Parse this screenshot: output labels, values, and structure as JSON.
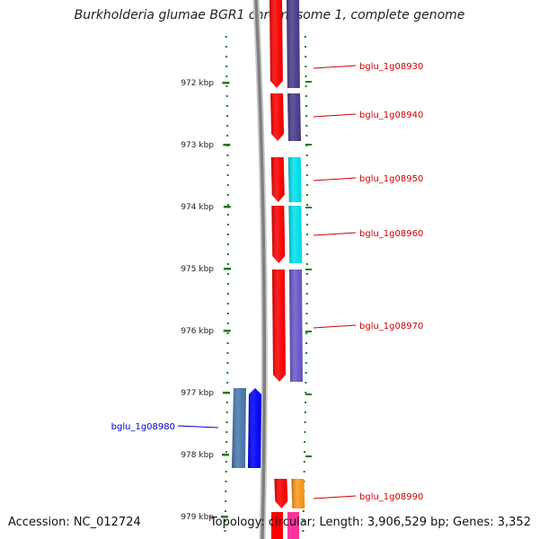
{
  "title": "Burkholderia glumae BGR1 chromosome 1, complete genome",
  "accession": "Accession: NC_012724",
  "stats": "Topology: circular; Length: 3,906,529 bp; Genes: 3,352",
  "scale_marks": [
    {
      "label": "972 kbp"
    },
    {
      "label": "973 kbp"
    },
    {
      "label": "974 kbp"
    },
    {
      "label": "975 kbp"
    },
    {
      "label": "976 kbp"
    },
    {
      "label": "977 kbp"
    },
    {
      "label": "978 kbp"
    },
    {
      "label": "979 kbp"
    }
  ],
  "genes": [
    {
      "name": "bglu_1g08930",
      "strand": "forward",
      "cog_color": "#4a3d8f"
    },
    {
      "name": "bglu_1g08940",
      "strand": "forward",
      "cog_color": "#4a3d8f"
    },
    {
      "name": "bglu_1g08950",
      "strand": "forward",
      "cog_color": "#00e5f0"
    },
    {
      "name": "bglu_1g08960",
      "strand": "forward",
      "cog_color": "#00e5f0"
    },
    {
      "name": "bglu_1g08970",
      "strand": "forward",
      "cog_color": "#6a5acd"
    },
    {
      "name": "bglu_1g08980",
      "strand": "reverse",
      "cog_color": "#4a7ab0"
    },
    {
      "name": "bglu_1g08990",
      "strand": "forward",
      "cog_color": "#ff9a1a"
    }
  ],
  "colors": {
    "forward_strand": "#ff0000",
    "reverse_strand": "#0000ff",
    "backbone": "#808080",
    "gc_track": "#1a7a1a",
    "label_forward": "#cc0000",
    "label_reverse": "#0000cc"
  }
}
